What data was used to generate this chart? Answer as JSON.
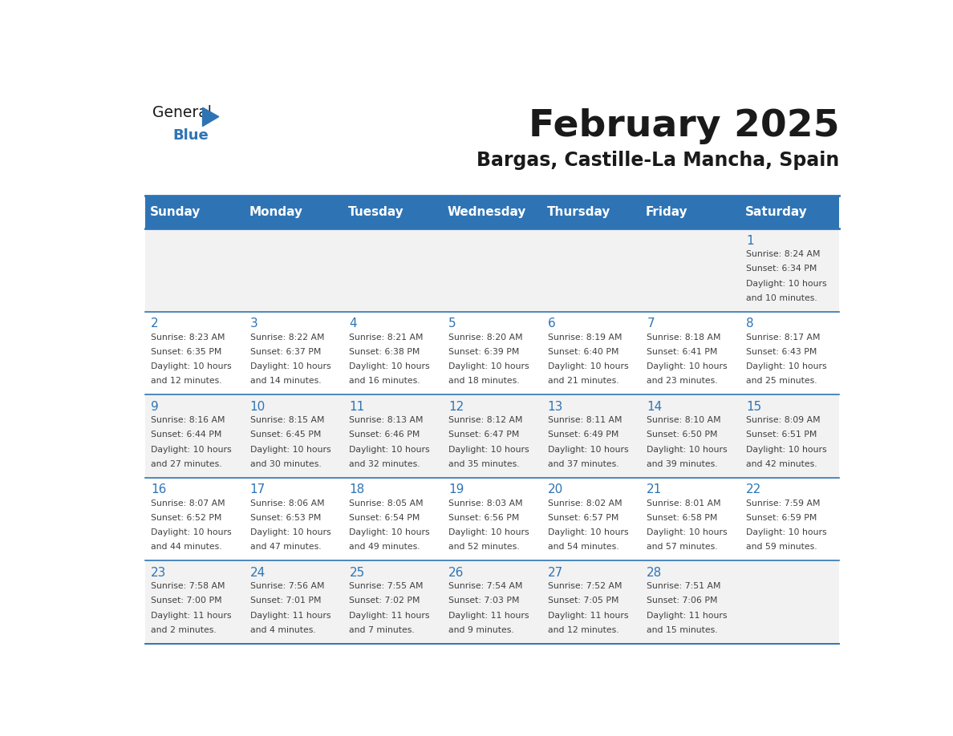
{
  "title": "February 2025",
  "subtitle": "Bargas, Castille-La Mancha, Spain",
  "days_of_week": [
    "Sunday",
    "Monday",
    "Tuesday",
    "Wednesday",
    "Thursday",
    "Friday",
    "Saturday"
  ],
  "header_bg": "#2e74b5",
  "header_text": "#ffffff",
  "row_bg_odd": "#f2f2f2",
  "row_bg_even": "#ffffff",
  "cell_text_color": "#404040",
  "day_num_color": "#2e74b5",
  "separator_color": "#2e74b5",
  "calendar": [
    [
      {
        "day": 0,
        "info": ""
      },
      {
        "day": 0,
        "info": ""
      },
      {
        "day": 0,
        "info": ""
      },
      {
        "day": 0,
        "info": ""
      },
      {
        "day": 0,
        "info": ""
      },
      {
        "day": 0,
        "info": ""
      },
      {
        "day": 1,
        "info": "Sunrise: 8:24 AM\nSunset: 6:34 PM\nDaylight: 10 hours\nand 10 minutes."
      }
    ],
    [
      {
        "day": 2,
        "info": "Sunrise: 8:23 AM\nSunset: 6:35 PM\nDaylight: 10 hours\nand 12 minutes."
      },
      {
        "day": 3,
        "info": "Sunrise: 8:22 AM\nSunset: 6:37 PM\nDaylight: 10 hours\nand 14 minutes."
      },
      {
        "day": 4,
        "info": "Sunrise: 8:21 AM\nSunset: 6:38 PM\nDaylight: 10 hours\nand 16 minutes."
      },
      {
        "day": 5,
        "info": "Sunrise: 8:20 AM\nSunset: 6:39 PM\nDaylight: 10 hours\nand 18 minutes."
      },
      {
        "day": 6,
        "info": "Sunrise: 8:19 AM\nSunset: 6:40 PM\nDaylight: 10 hours\nand 21 minutes."
      },
      {
        "day": 7,
        "info": "Sunrise: 8:18 AM\nSunset: 6:41 PM\nDaylight: 10 hours\nand 23 minutes."
      },
      {
        "day": 8,
        "info": "Sunrise: 8:17 AM\nSunset: 6:43 PM\nDaylight: 10 hours\nand 25 minutes."
      }
    ],
    [
      {
        "day": 9,
        "info": "Sunrise: 8:16 AM\nSunset: 6:44 PM\nDaylight: 10 hours\nand 27 minutes."
      },
      {
        "day": 10,
        "info": "Sunrise: 8:15 AM\nSunset: 6:45 PM\nDaylight: 10 hours\nand 30 minutes."
      },
      {
        "day": 11,
        "info": "Sunrise: 8:13 AM\nSunset: 6:46 PM\nDaylight: 10 hours\nand 32 minutes."
      },
      {
        "day": 12,
        "info": "Sunrise: 8:12 AM\nSunset: 6:47 PM\nDaylight: 10 hours\nand 35 minutes."
      },
      {
        "day": 13,
        "info": "Sunrise: 8:11 AM\nSunset: 6:49 PM\nDaylight: 10 hours\nand 37 minutes."
      },
      {
        "day": 14,
        "info": "Sunrise: 8:10 AM\nSunset: 6:50 PM\nDaylight: 10 hours\nand 39 minutes."
      },
      {
        "day": 15,
        "info": "Sunrise: 8:09 AM\nSunset: 6:51 PM\nDaylight: 10 hours\nand 42 minutes."
      }
    ],
    [
      {
        "day": 16,
        "info": "Sunrise: 8:07 AM\nSunset: 6:52 PM\nDaylight: 10 hours\nand 44 minutes."
      },
      {
        "day": 17,
        "info": "Sunrise: 8:06 AM\nSunset: 6:53 PM\nDaylight: 10 hours\nand 47 minutes."
      },
      {
        "day": 18,
        "info": "Sunrise: 8:05 AM\nSunset: 6:54 PM\nDaylight: 10 hours\nand 49 minutes."
      },
      {
        "day": 19,
        "info": "Sunrise: 8:03 AM\nSunset: 6:56 PM\nDaylight: 10 hours\nand 52 minutes."
      },
      {
        "day": 20,
        "info": "Sunrise: 8:02 AM\nSunset: 6:57 PM\nDaylight: 10 hours\nand 54 minutes."
      },
      {
        "day": 21,
        "info": "Sunrise: 8:01 AM\nSunset: 6:58 PM\nDaylight: 10 hours\nand 57 minutes."
      },
      {
        "day": 22,
        "info": "Sunrise: 7:59 AM\nSunset: 6:59 PM\nDaylight: 10 hours\nand 59 minutes."
      }
    ],
    [
      {
        "day": 23,
        "info": "Sunrise: 7:58 AM\nSunset: 7:00 PM\nDaylight: 11 hours\nand 2 minutes."
      },
      {
        "day": 24,
        "info": "Sunrise: 7:56 AM\nSunset: 7:01 PM\nDaylight: 11 hours\nand 4 minutes."
      },
      {
        "day": 25,
        "info": "Sunrise: 7:55 AM\nSunset: 7:02 PM\nDaylight: 11 hours\nand 7 minutes."
      },
      {
        "day": 26,
        "info": "Sunrise: 7:54 AM\nSunset: 7:03 PM\nDaylight: 11 hours\nand 9 minutes."
      },
      {
        "day": 27,
        "info": "Sunrise: 7:52 AM\nSunset: 7:05 PM\nDaylight: 11 hours\nand 12 minutes."
      },
      {
        "day": 28,
        "info": "Sunrise: 7:51 AM\nSunset: 7:06 PM\nDaylight: 11 hours\nand 15 minutes."
      },
      {
        "day": 0,
        "info": ""
      }
    ]
  ]
}
